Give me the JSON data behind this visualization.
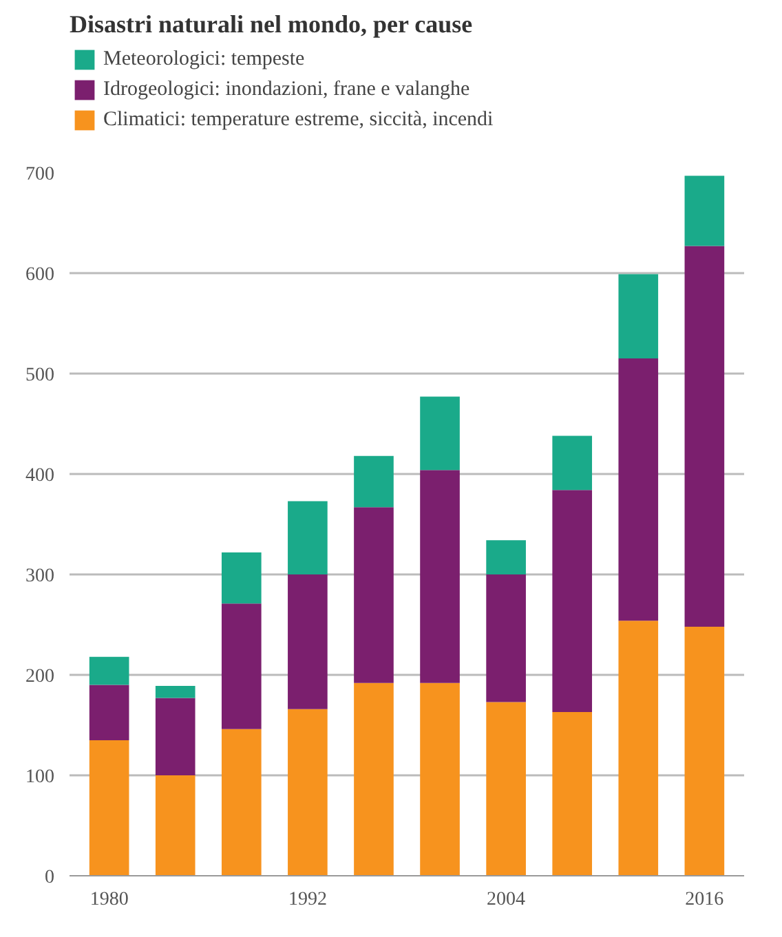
{
  "chart_data": {
    "type": "bar",
    "title": "Disastri naturali nel mondo, per cause",
    "categories": [
      "1980",
      null,
      null,
      "1992",
      null,
      null,
      "2004",
      null,
      null,
      "2016"
    ],
    "stacked": true,
    "series": [
      {
        "name": "Climatici: temperature estreme, siccità, incendi",
        "color": "#f7931e",
        "values": [
          135,
          100,
          146,
          166,
          192,
          192,
          173,
          163,
          254,
          248
        ]
      },
      {
        "name": "Idrogeologici: inondazioni, frane e valanghe",
        "color": "#7b1f6e",
        "values": [
          55,
          77,
          125,
          134,
          175,
          212,
          127,
          221,
          261,
          379
        ]
      },
      {
        "name": "Meteorologici: tempeste",
        "color": "#1aaa8a",
        "values": [
          28,
          12,
          51,
          73,
          51,
          73,
          34,
          54,
          84,
          70
        ]
      }
    ],
    "ylim": [
      0,
      700
    ],
    "yticks": [
      0,
      100,
      200,
      300,
      400,
      500,
      600,
      700
    ],
    "grid": "y",
    "legend": "top left"
  }
}
